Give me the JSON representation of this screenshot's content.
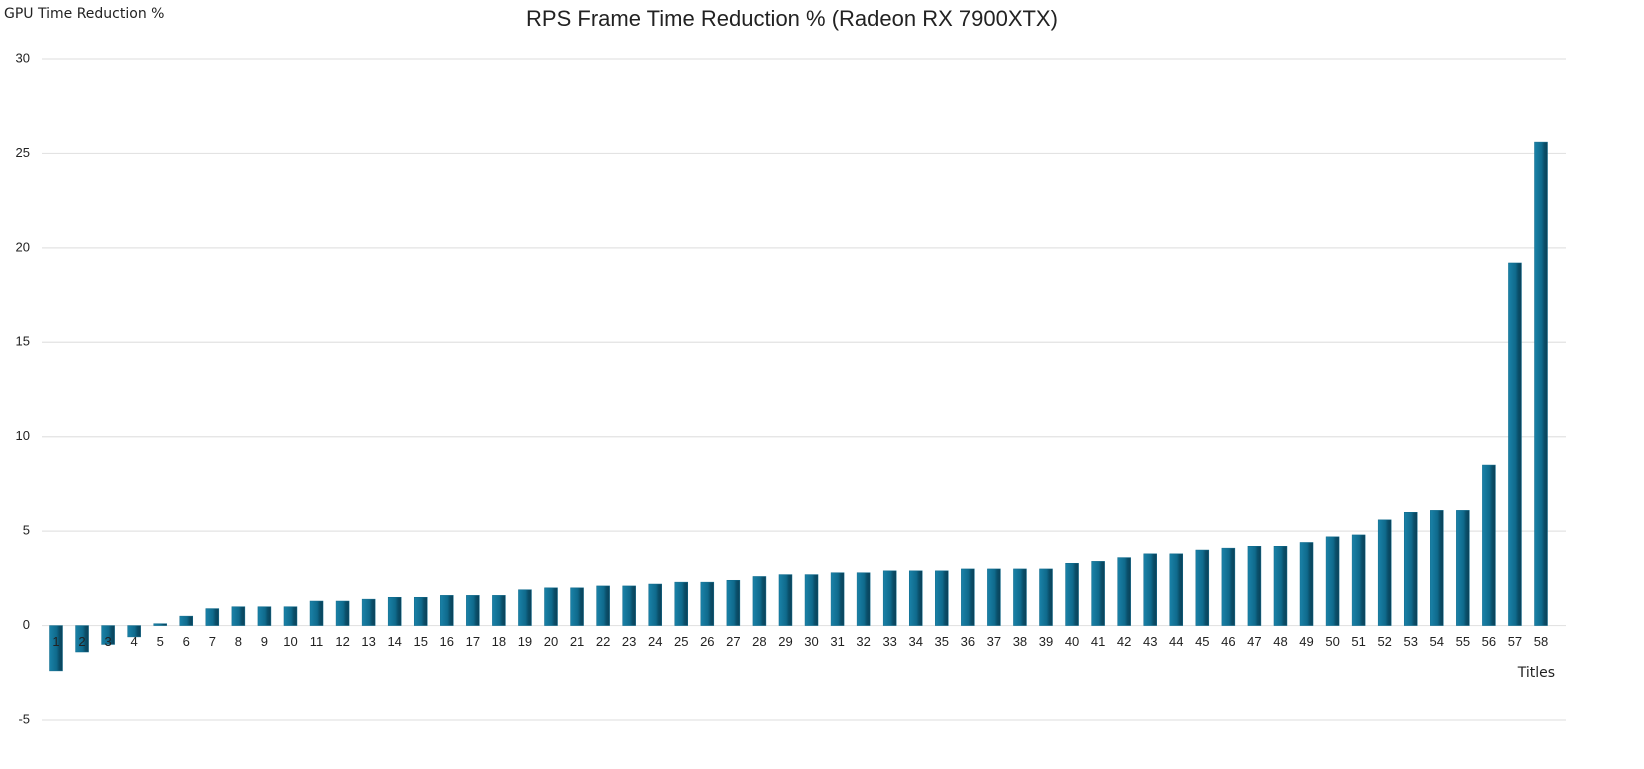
{
  "chart_data": {
    "type": "bar",
    "title": "RPS Frame Time Reduction % (Radeon RX 7900XTX)",
    "y_label": "GPU Time Reduction %",
    "x_label": "Titles",
    "categories": [
      1,
      2,
      3,
      4,
      5,
      6,
      7,
      8,
      9,
      10,
      11,
      12,
      13,
      14,
      15,
      16,
      17,
      18,
      19,
      20,
      21,
      22,
      23,
      24,
      25,
      26,
      27,
      28,
      29,
      30,
      31,
      32,
      33,
      34,
      35,
      36,
      37,
      38,
      39,
      40,
      41,
      42,
      43,
      44,
      45,
      46,
      47,
      48,
      49,
      50,
      51,
      52,
      53,
      54,
      55,
      56,
      57,
      58
    ],
    "values": [
      -2.4,
      -1.4,
      -1.0,
      -0.6,
      0.1,
      0.5,
      0.9,
      1.0,
      1.0,
      1.0,
      1.3,
      1.3,
      1.4,
      1.5,
      1.5,
      1.6,
      1.6,
      1.6,
      1.9,
      2.0,
      2.0,
      2.1,
      2.1,
      2.2,
      2.3,
      2.3,
      2.4,
      2.6,
      2.7,
      2.7,
      2.8,
      2.8,
      2.9,
      2.9,
      2.9,
      3.0,
      3.0,
      3.0,
      3.0,
      3.3,
      3.4,
      3.6,
      3.8,
      3.8,
      4.0,
      4.1,
      4.2,
      4.2,
      4.4,
      4.7,
      4.8,
      5.6,
      6.0,
      6.1,
      6.1,
      8.5,
      19.2,
      25.6
    ],
    "color": "#0f6a8c",
    "ylim": [
      -5,
      30
    ],
    "yticks": [
      -5,
      0,
      5,
      10,
      15,
      20,
      25,
      30
    ],
    "grid": true
  }
}
